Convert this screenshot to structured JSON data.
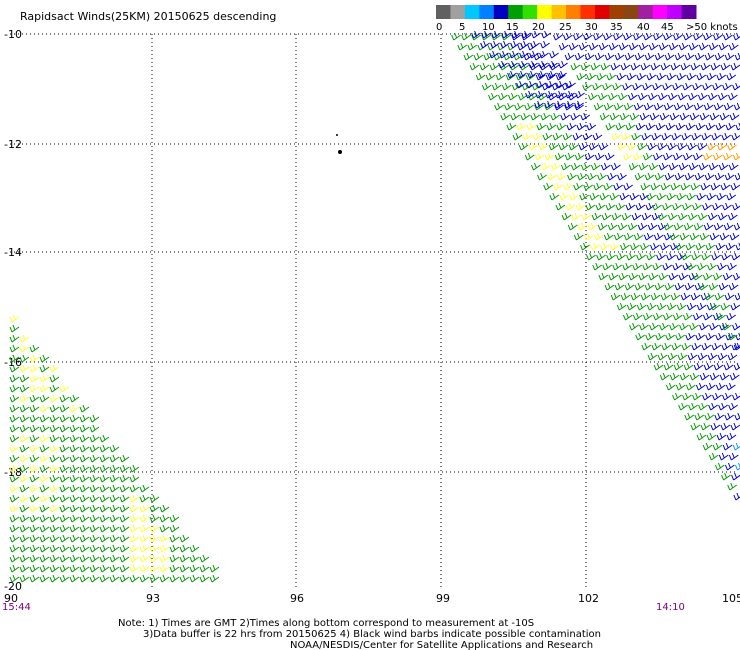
{
  "title": "Rapidsact Winds(25KM) 20150625 descending",
  "colorbar": {
    "labels": [
      "0",
      "5",
      "10",
      "15",
      "20",
      "25",
      "30",
      "35",
      "40",
      "45",
      ">50 knots"
    ],
    "colors": [
      "#606060",
      "#a0a0a0",
      "#00c8ff",
      "#0080ff",
      "#0000c0",
      "#00a000",
      "#30e000",
      "#ffff00",
      "#ffc000",
      "#ff8000",
      "#ff3000",
      "#e00000",
      "#a04000",
      "#8b4513",
      "#a020a0",
      "#ff00ff",
      "#c000ff",
      "#6000a0"
    ]
  },
  "axes": {
    "lat_labels": [
      "-10",
      "-12",
      "-14",
      "-16",
      "-18",
      "-20"
    ],
    "lon_labels": [
      "90",
      "93",
      "96",
      "99",
      "102",
      "105"
    ]
  },
  "swath_times": {
    "left": "15:44",
    "right": "14:10"
  },
  "notes": {
    "line1": "Note: 1) Times are GMT 2)Times along bottom correspond to measurement at -10S",
    "line2": "3)Data buffer is 22 hrs from 20150625 4) Black wind barbs indicate possible contamination",
    "line3": "NOAA/NESDIS/Center for Satellite Applications and Research"
  },
  "speed_colors": {
    "blue": "#0000cc",
    "green": "#009900",
    "yellow": "#ffff33",
    "orange": "#ff9900",
    "cyan": "#0099ff"
  }
}
